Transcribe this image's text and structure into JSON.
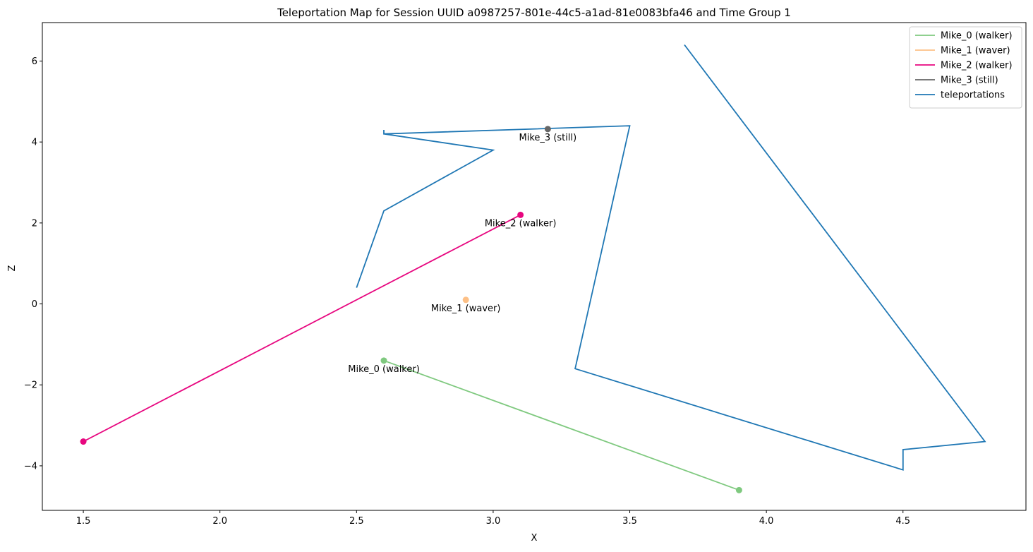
{
  "chart_data": {
    "type": "line",
    "title": "Teleportation Map for Session UUID a0987257-801e-44c5-a1ad-81e0083bfa46 and Time Group 1",
    "xlabel": "X",
    "ylabel": "Z",
    "xlim": [
      1.35,
      4.95
    ],
    "ylim": [
      -5.1,
      6.95
    ],
    "xticks": [
      1.5,
      2.0,
      2.5,
      3.0,
      3.5,
      4.0,
      4.5
    ],
    "xtick_labels": [
      "1.5",
      "2.0",
      "2.5",
      "3.0",
      "3.5",
      "4.0",
      "4.5"
    ],
    "yticks": [
      -4,
      -2,
      0,
      2,
      4,
      6
    ],
    "ytick_labels": [
      "−4",
      "−2",
      "0",
      "2",
      "4",
      "6"
    ],
    "grid": false,
    "legend_position": "top-right",
    "series": [
      {
        "name": "Mike_0 (walker)",
        "color": "#7fc97f",
        "x": [
          2.6,
          3.9
        ],
        "y": [
          -1.4,
          -4.6
        ],
        "markers": "endpoints",
        "annotation": {
          "text": "Mike_0 (walker)",
          "x": 2.6,
          "y": -1.4
        }
      },
      {
        "name": "Mike_1 (waver)",
        "color": "#fdc086",
        "x": [
          2.9
        ],
        "y": [
          0.1
        ],
        "markers": "endpoints",
        "annotation": {
          "text": "Mike_1 (waver)",
          "x": 2.9,
          "y": 0.1
        }
      },
      {
        "name": "Mike_2 (walker)",
        "color": "#e7067f",
        "x": [
          3.1,
          1.5
        ],
        "y": [
          2.2,
          -3.4
        ],
        "markers": "endpoints",
        "annotation": {
          "text": "Mike_2 (walker)",
          "x": 3.1,
          "y": 2.2
        }
      },
      {
        "name": "Mike_3 (still)",
        "color": "#666666",
        "x": [
          3.2
        ],
        "y": [
          4.32
        ],
        "markers": "endpoints",
        "annotation": {
          "text": "Mike_3 (still)",
          "x": 3.2,
          "y": 4.32
        }
      },
      {
        "name": "teleportations",
        "color": "#1f77b4",
        "x": [
          2.5,
          2.6,
          3.0,
          2.6,
          2.6,
          2.6,
          3.5,
          3.3,
          4.5,
          4.5,
          4.8,
          3.7
        ],
        "y": [
          0.4,
          2.3,
          3.8,
          4.2,
          4.3,
          4.2,
          4.4,
          -1.6,
          -4.1,
          -3.6,
          -3.4,
          6.4
        ],
        "markers": "none"
      }
    ]
  }
}
